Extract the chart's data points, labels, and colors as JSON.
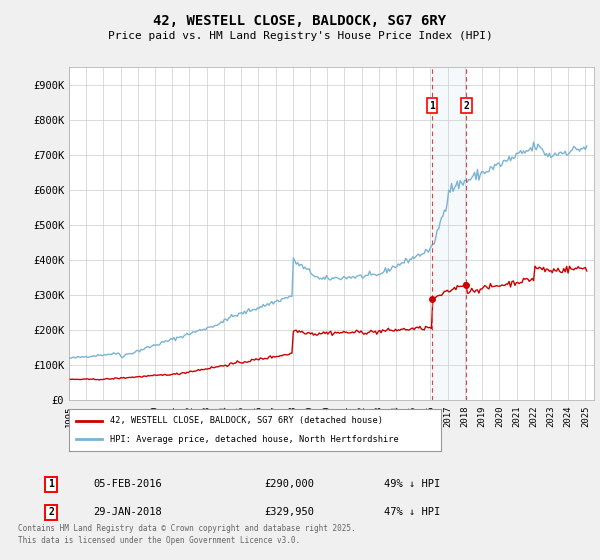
{
  "title": "42, WESTELL CLOSE, BALDOCK, SG7 6RY",
  "subtitle": "Price paid vs. HM Land Registry's House Price Index (HPI)",
  "ylabel_ticks": [
    "£0",
    "£100K",
    "£200K",
    "£300K",
    "£400K",
    "£500K",
    "£600K",
    "£700K",
    "£800K",
    "£900K"
  ],
  "ytick_values": [
    0,
    100000,
    200000,
    300000,
    400000,
    500000,
    600000,
    700000,
    800000,
    900000
  ],
  "ylim": [
    0,
    950000
  ],
  "xlim_start": 1995.0,
  "xlim_end": 2025.5,
  "marker1_x": 2016.09,
  "marker1_y": 290000,
  "marker2_x": 2018.08,
  "marker2_y": 329950,
  "marker1_label": "05-FEB-2016",
  "marker1_price": "£290,000",
  "marker1_hpi": "49% ↓ HPI",
  "marker2_label": "29-JAN-2018",
  "marker2_price": "£329,950",
  "marker2_hpi": "47% ↓ HPI",
  "hpi_color": "#7ab3d4",
  "price_color": "#cc0000",
  "bg_color": "#f0f0f0",
  "plot_bg_color": "#ffffff",
  "grid_color": "#cccccc",
  "legend_label_price": "42, WESTELL CLOSE, BALDOCK, SG7 6RY (detached house)",
  "legend_label_hpi": "HPI: Average price, detached house, North Hertfordshire",
  "footnote": "Contains HM Land Registry data © Crown copyright and database right 2025.\nThis data is licensed under the Open Government Licence v3.0.",
  "xtick_years": [
    1995,
    1996,
    1997,
    1998,
    1999,
    2000,
    2001,
    2002,
    2003,
    2004,
    2005,
    2006,
    2007,
    2008,
    2009,
    2010,
    2011,
    2012,
    2013,
    2014,
    2015,
    2016,
    2017,
    2018,
    2019,
    2020,
    2021,
    2022,
    2023,
    2024,
    2025
  ]
}
